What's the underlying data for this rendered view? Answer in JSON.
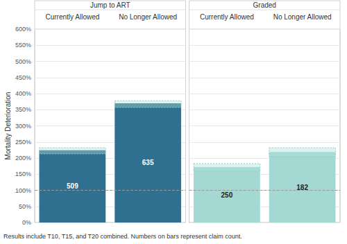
{
  "chart_data": [
    {
      "type": "bar",
      "title": "Jump to ART",
      "categories": [
        "Currently Allowed",
        "No Longer Allowed"
      ],
      "values": [
        224,
        370
      ],
      "color": "#2f6f8f",
      "ci_low": [
        213,
        357
      ],
      "ci_high": [
        232,
        378
      ],
      "claim_counts": [
        509,
        635
      ],
      "reference_line": 100,
      "ylabel": "Mortality Deterioration",
      "ylim": [
        0,
        600
      ],
      "yticks": [
        {
          "value": 0,
          "label": "0%"
        },
        {
          "value": 50,
          "label": "50%"
        },
        {
          "value": 100,
          "label": "100%"
        },
        {
          "value": 150,
          "label": "150%"
        },
        {
          "value": 200,
          "label": "200%"
        },
        {
          "value": 250,
          "label": "250%"
        },
        {
          "value": 300,
          "label": "300%"
        },
        {
          "value": 350,
          "label": "350%"
        },
        {
          "value": 400,
          "label": "400%"
        },
        {
          "value": 450,
          "label": "450%"
        },
        {
          "value": 500,
          "label": "500%"
        },
        {
          "value": 550,
          "label": "550%"
        },
        {
          "value": 600,
          "label": "600%"
        }
      ],
      "grid": true
    },
    {
      "type": "bar",
      "title": "Graded",
      "categories": [
        "Currently Allowed",
        "No Longer Allowed"
      ],
      "values": [
        172,
        219
      ],
      "color": "#a3d9d2",
      "ci_low": [
        159,
        204
      ],
      "ci_high": [
        183,
        232
      ],
      "claim_counts": [
        250,
        182
      ],
      "reference_line": 100,
      "ylim": [
        0,
        600
      ],
      "yticks": [
        {
          "value": 0,
          "label": "0%"
        },
        {
          "value": 50,
          "label": "50%"
        },
        {
          "value": 100,
          "label": "100%"
        },
        {
          "value": 150,
          "label": "150%"
        },
        {
          "value": 200,
          "label": "200%"
        },
        {
          "value": 250,
          "label": "250%"
        },
        {
          "value": 300,
          "label": "300%"
        },
        {
          "value": 350,
          "label": "350%"
        },
        {
          "value": 400,
          "label": "400%"
        },
        {
          "value": 450,
          "label": "450%"
        },
        {
          "value": 500,
          "label": "500%"
        },
        {
          "value": 550,
          "label": "550%"
        },
        {
          "value": 600,
          "label": "600%"
        }
      ],
      "grid": true,
      "tick_labels": "x"
    }
  ],
  "footnote": "Results include T10, T15, and T20 combined. Numbers on bars represent claim count."
}
